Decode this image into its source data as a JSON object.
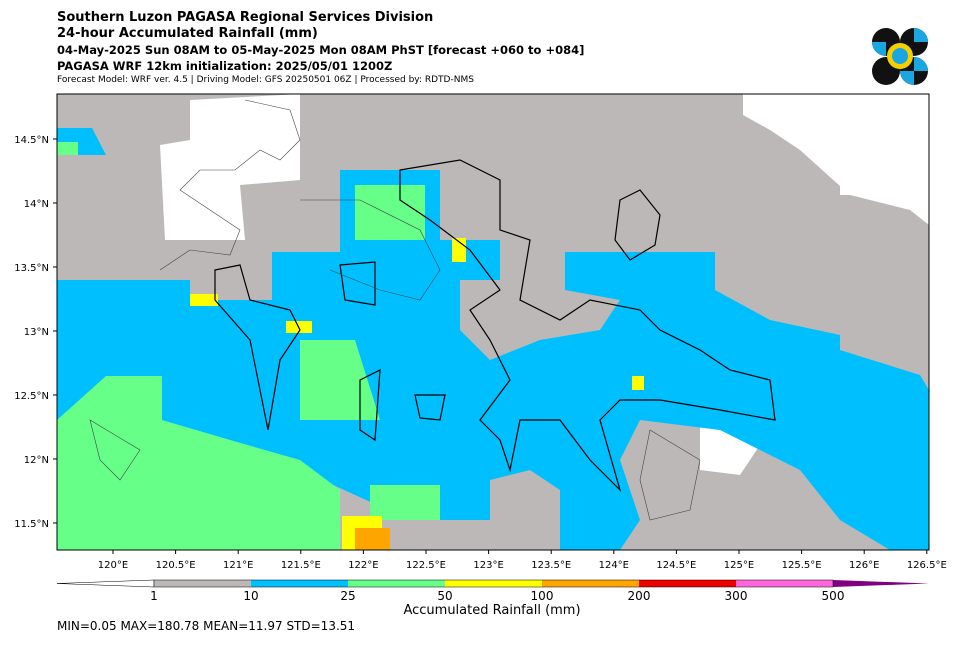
{
  "header": {
    "title": "Southern Luzon PAGASA Regional Services Division",
    "subtitle": "24-hour Accumulated Rainfall (mm)",
    "period": "04-May-2025 Sun 08AM to 05-May-2025 Mon 08AM PhST [forecast +060 to +084]",
    "initialization": "PAGASA WRF 12km initialization: 2025/05/01 1200Z",
    "model_info": "Forecast Model: WRF ver. 4.5 | Driving Model: GFS 20250501 06Z | Processed by: RDTD-NMS"
  },
  "map": {
    "lon_labels": [
      "120°E",
      "120.5°E",
      "121°E",
      "121.5°E",
      "122°E",
      "122.5°E",
      "123°E",
      "123.5°E",
      "124°E",
      "124.5°E",
      "125°E",
      "125.5°E",
      "126°E",
      "126.5°E"
    ],
    "lat_labels": [
      "14.5°N",
      "14°N",
      "13.5°N",
      "13°N",
      "12.5°N",
      "12°N",
      "11.5°N"
    ]
  },
  "colorbar": {
    "ticks": [
      "1",
      "10",
      "25",
      "50",
      "100",
      "200",
      "300",
      "500"
    ],
    "colors": [
      "#bcb8b8",
      "#00bfff",
      "#66ff88",
      "#ffff00",
      "#ffa500",
      "#ee0000",
      "#ff66dd"
    ],
    "under_color": "#ffffff",
    "over_color": "#800080",
    "label": "Accumulated Rainfall (mm)"
  },
  "stats": "MIN=0.05   MAX=180.78   MEAN=11.97   STD=13.51"
}
